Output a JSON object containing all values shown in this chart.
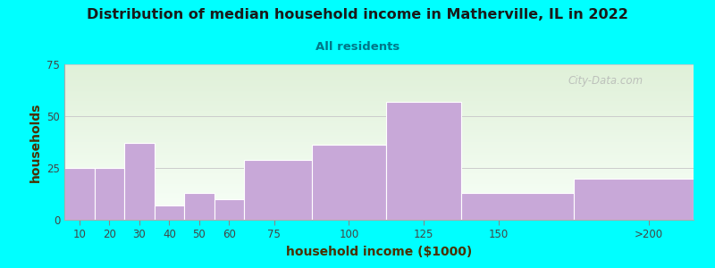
{
  "title": "Distribution of median household income in Matherville, IL in 2022",
  "subtitle": "All residents",
  "xlabel": "household income ($1000)",
  "ylabel": "households",
  "background_outer": "#00FFFF",
  "bar_color": "#C8A8D8",
  "categories": [
    "10",
    "20",
    "30",
    "40",
    "50",
    "60",
    "75",
    "100",
    "125",
    "150",
    ">200"
  ],
  "values": [
    25,
    25,
    37,
    7,
    13,
    10,
    29,
    36,
    57,
    13,
    20
  ],
  "bin_edges": [
    5,
    15,
    25,
    35,
    45,
    55,
    65,
    87.5,
    112.5,
    137.5,
    175,
    215
  ],
  "ylim": [
    0,
    75
  ],
  "yticks": [
    0,
    25,
    50,
    75
  ],
  "xtick_positions": [
    10,
    20,
    30,
    40,
    50,
    60,
    75,
    100,
    125,
    150,
    200
  ],
  "watermark": "City-Data.com",
  "plot_bg_top_color": "#dff0d8",
  "plot_bg_bottom_color": "#f8fff8",
  "title_color": "#1a1a1a",
  "subtitle_color": "#007788",
  "label_color": "#4a3000"
}
